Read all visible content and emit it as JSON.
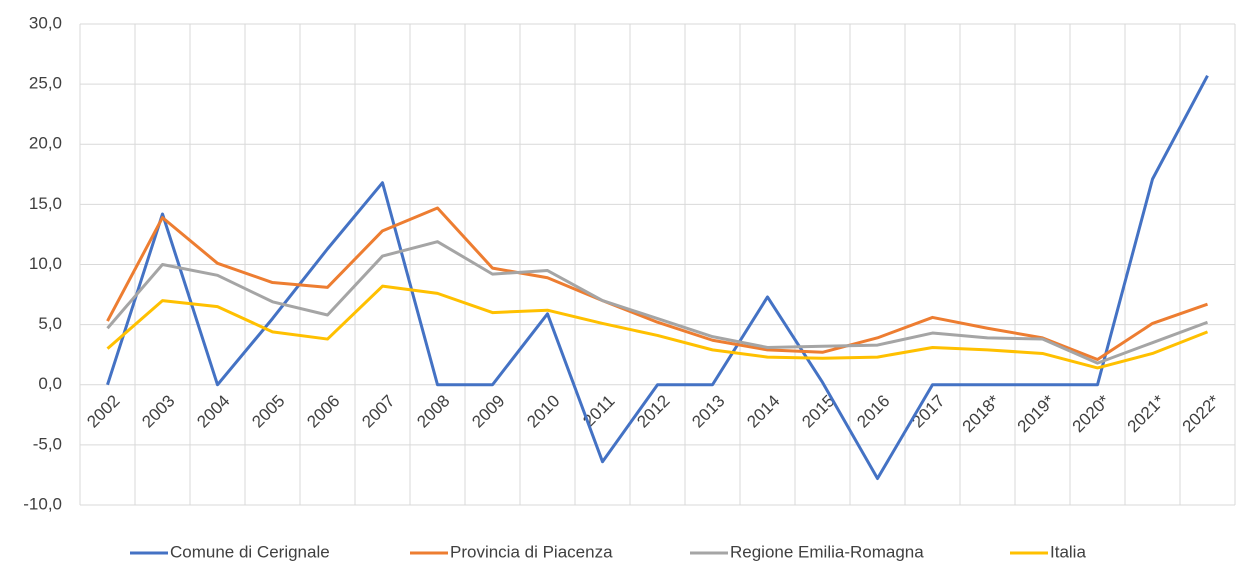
{
  "chart_data": {
    "type": "line",
    "categories": [
      "2002",
      "2003",
      "2004",
      "2005",
      "2006",
      "2007",
      "2008",
      "2009",
      "2010",
      "2011",
      "2012",
      "2013",
      "2014",
      "2015",
      "2016",
      "2017",
      "2018*",
      "2019*",
      "2020*",
      "2021*",
      "2022*"
    ],
    "series": [
      {
        "name": "Comune di Cerignale",
        "color": "#4472c4",
        "values": [
          0,
          14.2,
          0,
          5.5,
          11.3,
          16.8,
          0,
          0,
          5.9,
          -6.4,
          0,
          0,
          7.3,
          0.2,
          -7.8,
          0,
          0,
          0,
          0,
          17.1,
          25.7
        ]
      },
      {
        "name": "Provincia di Piacenza",
        "color": "#ed7d31",
        "values": [
          5.3,
          13.9,
          10.1,
          8.5,
          8.1,
          12.8,
          14.7,
          9.7,
          8.9,
          7.0,
          5.2,
          3.7,
          2.9,
          2.7,
          3.9,
          5.6,
          4.7,
          3.9,
          2.1,
          5.1,
          6.7
        ]
      },
      {
        "name": "Regione Emilia-Romagna",
        "color": "#a5a5a5",
        "values": [
          4.7,
          10.0,
          9.1,
          6.9,
          5.8,
          10.7,
          11.9,
          9.2,
          9.5,
          7.0,
          5.5,
          4.0,
          3.1,
          3.2,
          3.3,
          4.3,
          3.9,
          3.8,
          1.8,
          3.5,
          5.2
        ]
      },
      {
        "name": "Italia",
        "color": "#ffc000",
        "values": [
          3.0,
          7.0,
          6.5,
          4.4,
          3.8,
          8.2,
          7.6,
          6.0,
          6.2,
          5.1,
          4.1,
          2.9,
          2.3,
          2.2,
          2.3,
          3.1,
          2.9,
          2.6,
          1.4,
          2.6,
          4.4
        ]
      }
    ],
    "ylim": [
      -10,
      30
    ],
    "yticks": [
      {
        "value": -10,
        "label": "-10,0"
      },
      {
        "value": -5,
        "label": "-5,0"
      },
      {
        "value": 0,
        "label": "0,0"
      },
      {
        "value": 5,
        "label": "5,0"
      },
      {
        "value": 10,
        "label": "10,0"
      },
      {
        "value": 15,
        "label": "15,0"
      },
      {
        "value": 20,
        "label": "20,0"
      },
      {
        "value": 25,
        "label": "25,0"
      },
      {
        "value": 30,
        "label": "30,0"
      }
    ],
    "grid": true,
    "legend": "bottom"
  }
}
